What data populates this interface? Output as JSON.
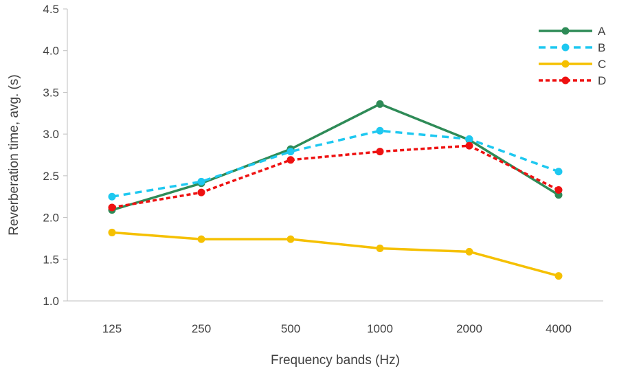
{
  "chart_data": {
    "type": "line",
    "title": "",
    "xlabel": "Frequency bands (Hz)",
    "ylabel": "Reverberation time, avg. (s)",
    "categories": [
      "125",
      "250",
      "500",
      "1000",
      "2000",
      "4000"
    ],
    "ylim": [
      1.0,
      4.5
    ],
    "yticks": [
      "1.0",
      "1.5",
      "2.0",
      "2.5",
      "3.0",
      "3.5",
      "4.0",
      "4.5"
    ],
    "grid": false,
    "legend_position": "top-right",
    "series": [
      {
        "name": "A",
        "values": [
          2.09,
          2.41,
          2.82,
          3.36,
          2.93,
          2.27
        ],
        "color": "#2e8b57",
        "dash": "solid"
      },
      {
        "name": "B",
        "values": [
          2.25,
          2.43,
          2.79,
          3.04,
          2.94,
          2.55
        ],
        "color": "#1ec8f0",
        "dash": "dashed"
      },
      {
        "name": "C",
        "values": [
          1.82,
          1.74,
          1.74,
          1.63,
          1.59,
          1.3
        ],
        "color": "#f5c000",
        "dash": "solid"
      },
      {
        "name": "D",
        "values": [
          2.12,
          2.3,
          2.69,
          2.79,
          2.86,
          2.33
        ],
        "color": "#ee1111",
        "dash": "dotted"
      }
    ]
  }
}
